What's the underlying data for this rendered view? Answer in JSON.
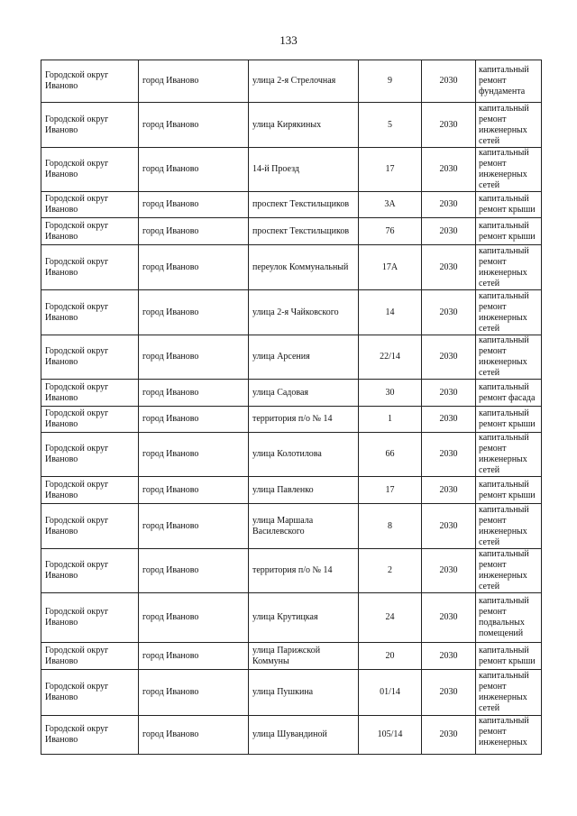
{
  "page_number": "133",
  "rows": [
    {
      "district": "Городской округ Иваново",
      "city": "город Иваново",
      "street": "улица 2-я Стрелочная",
      "house": "9",
      "year": "2030",
      "work": "капитальный ремонт фундамента"
    },
    {
      "district": "Городской округ Иваново",
      "city": "город Иваново",
      "street": "улица Кирякиных",
      "house": "5",
      "year": "2030",
      "work": "капитальный ремонт инженерных сетей"
    },
    {
      "district": "Городской округ Иваново",
      "city": "город Иваново",
      "street": "14-й Проезд",
      "house": "17",
      "year": "2030",
      "work": "капитальный ремонт инженерных сетей"
    },
    {
      "district": "Городской округ Иваново",
      "city": "город Иваново",
      "street": "проспект Текстильщиков",
      "house": "3А",
      "year": "2030",
      "work": "капитальный ремонт крыши"
    },
    {
      "district": "Городской округ Иваново",
      "city": "город Иваново",
      "street": "проспект Текстильщиков",
      "house": "76",
      "year": "2030",
      "work": "капитальный ремонт крыши"
    },
    {
      "district": "Городской округ Иваново",
      "city": "город Иваново",
      "street": "переулок Коммунальный",
      "house": "17А",
      "year": "2030",
      "work": "капитальный ремонт инженерных сетей"
    },
    {
      "district": "Городской округ Иваново",
      "city": "город Иваново",
      "street": "улица 2-я Чайковского",
      "house": "14",
      "year": "2030",
      "work": "капитальный ремонт инженерных сетей"
    },
    {
      "district": "Городской округ Иваново",
      "city": "город Иваново",
      "street": "улица Арсения",
      "house": "22/14",
      "year": "2030",
      "work": "капитальный ремонт инженерных сетей"
    },
    {
      "district": "Городской округ Иваново",
      "city": "город Иваново",
      "street": "улица Садовая",
      "house": "30",
      "year": "2030",
      "work": "капитальный ремонт фасада"
    },
    {
      "district": "Городской округ Иваново",
      "city": "город Иваново",
      "street": "территория п/о № 14",
      "house": "1",
      "year": "2030",
      "work": "капитальный ремонт крыши"
    },
    {
      "district": "Городской округ Иваново",
      "city": "город Иваново",
      "street": "улица Колотилова",
      "house": "66",
      "year": "2030",
      "work": "капитальный ремонт инженерных сетей"
    },
    {
      "district": "Городской округ Иваново",
      "city": "город Иваново",
      "street": "улица Павленко",
      "house": "17",
      "year": "2030",
      "work": "капитальный ремонт крыши"
    },
    {
      "district": "Городской округ Иваново",
      "city": "город Иваново",
      "street": "улица Маршала Василевского",
      "house": "8",
      "year": "2030",
      "work": "капитальный ремонт инженерных сетей"
    },
    {
      "district": "Городской округ Иваново",
      "city": "город Иваново",
      "street": "территория п/о № 14",
      "house": "2",
      "year": "2030",
      "work": "капитальный ремонт инженерных сетей"
    },
    {
      "district": "Городской округ Иваново",
      "city": "город Иваново",
      "street": "улица Крутицкая",
      "house": "24",
      "year": "2030",
      "work": "капитальный ремонт подвальных помещений"
    },
    {
      "district": "Городской округ Иваново",
      "city": "город Иваново",
      "street": "улица Парижской Коммуны",
      "house": "20",
      "year": "2030",
      "work": "капитальный ремонт крыши"
    },
    {
      "district": "Городской округ Иваново",
      "city": "город Иваново",
      "street": "улица Пушкина",
      "house": "01/14",
      "year": "2030",
      "work": "капитальный ремонт инженерных сетей"
    },
    {
      "district": "Городской округ Иваново",
      "city": "город Иваново",
      "street": "улица Шувандиной",
      "house": "105/14",
      "year": "2030",
      "work": "капитальный ремонт инженерных"
    }
  ]
}
